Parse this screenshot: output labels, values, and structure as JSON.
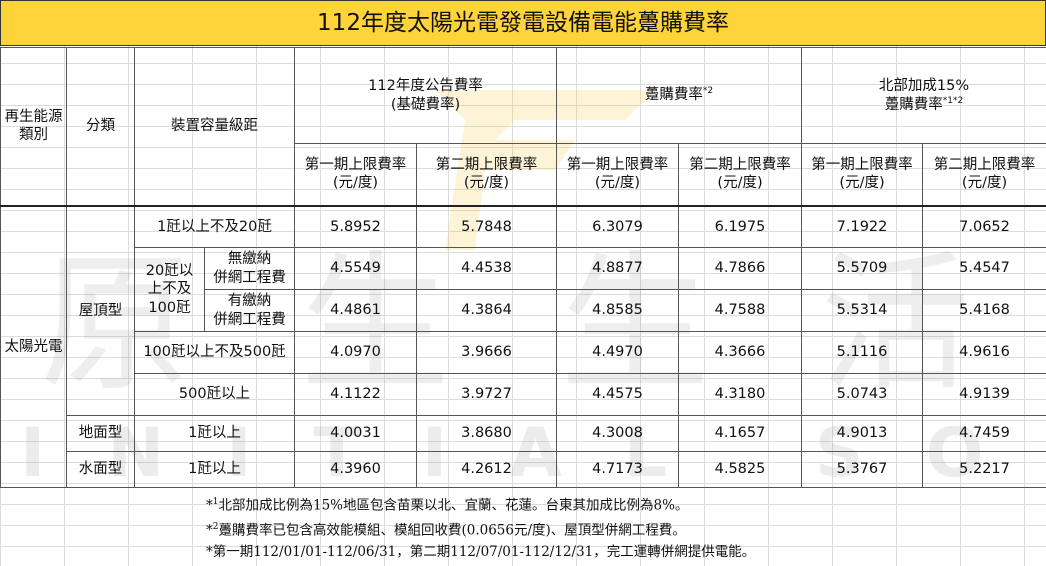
{
  "title": "112年度太陽光電發電設備電能躉購費率",
  "watermark": {
    "cn": "原生生活",
    "en": "INITIAL SOLAR"
  },
  "header": {
    "col_source": "再生能源類別",
    "col_category": "分類",
    "col_capacity": "裝置容量級距",
    "grp_announced_line1": "112年度公告費率",
    "grp_announced_line2": "(基礎費率)",
    "grp_purchase": "躉購費率",
    "grp_purchase_sup": "*2",
    "grp_north_line1": "北部加成15%",
    "grp_north_line2": "躉購費率",
    "grp_north_sup": "*1*2",
    "phase1": "第一期上限費率",
    "phase2": "第二期上限費率",
    "unit": "(元/度)"
  },
  "body": {
    "source": "太陽光電",
    "cat_roof": "屋頂型",
    "cat_ground": "地面型",
    "cat_water": "水面型",
    "cap_20_line1": "20瓩以",
    "cap_20_line2": "上不及",
    "cap_20_line3": "100瓩",
    "sub_no_fee_line1": "無繳納",
    "sub_no_fee_line2": "併網工程費",
    "sub_fee_line1": "有繳納",
    "sub_fee_line2": "併網工程費"
  },
  "rows": [
    {
      "capacity": "1瓩以上不及20瓩",
      "values": [
        "5.8952",
        "5.7848",
        "6.3079",
        "6.1975",
        "7.1922",
        "7.0652"
      ]
    },
    {
      "capacity": "無繳納併網工程費",
      "values": [
        "4.5549",
        "4.4538",
        "4.8877",
        "4.7866",
        "5.5709",
        "5.4547"
      ]
    },
    {
      "capacity": "有繳納併網工程費",
      "values": [
        "4.4861",
        "4.3864",
        "4.8585",
        "4.7588",
        "5.5314",
        "5.4168"
      ]
    },
    {
      "capacity": "100瓩以上不及500瓩",
      "values": [
        "4.0970",
        "3.9666",
        "4.4970",
        "4.3666",
        "5.1116",
        "4.9616"
      ]
    },
    {
      "capacity": "500瓩以上",
      "values": [
        "4.1122",
        "3.9727",
        "4.4575",
        "4.3180",
        "5.0743",
        "4.9139"
      ]
    },
    {
      "capacity": "1瓩以上",
      "values": [
        "4.0031",
        "3.8680",
        "4.3008",
        "4.1657",
        "4.9013",
        "4.7459"
      ]
    },
    {
      "capacity": "1瓩以上",
      "values": [
        "4.3960",
        "4.2612",
        "4.7173",
        "4.5825",
        "5.3767",
        "5.2217"
      ]
    }
  ],
  "notes": [
    {
      "prefix": "*",
      "sup": "1",
      "text": "北部加成比例為15%地區包含苗栗以北、宜蘭、花蓮。台東其加成比例為8%。"
    },
    {
      "prefix": "*",
      "sup": "2",
      "text": "躉購費率已包含高效能模組、模組回收費(0.0656元/度)、屋頂型併網工程費。"
    },
    {
      "prefix": "",
      "sup": "",
      "text": "*第一期112/01/01-112/06/31，第二期112/07/01-112/12/31，完工運轉併網提供電能。"
    }
  ],
  "colors": {
    "title_bg": "#ffd43b",
    "watermark_logo": "#f7c948"
  }
}
